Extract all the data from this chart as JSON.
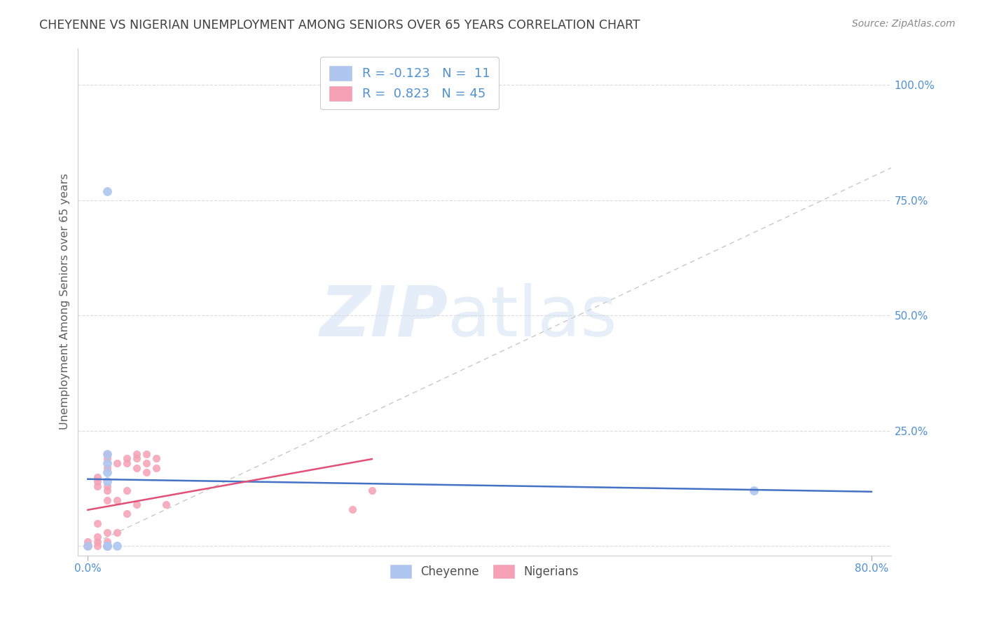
{
  "title": "CHEYENNE VS NIGERIAN UNEMPLOYMENT AMONG SENIORS OVER 65 YEARS CORRELATION CHART",
  "source": "Source: ZipAtlas.com",
  "ylabel": "Unemployment Among Seniors over 65 years",
  "xlabel": "",
  "xlim": [
    -0.01,
    0.82
  ],
  "ylim": [
    -0.02,
    1.08
  ],
  "xtick_positions": [
    0.0,
    0.8
  ],
  "xticklabels": [
    "0.0%",
    "80.0%"
  ],
  "ytick_positions": [
    0.0,
    0.25,
    0.5,
    0.75,
    1.0
  ],
  "yticklabels": [
    "",
    "25.0%",
    "50.0%",
    "75.0%",
    "100.0%"
  ],
  "cheyenne_color": "#aec6f0",
  "nigerian_color": "#f5a0b5",
  "cheyenne_line_color": "#4472c4",
  "nigerian_line_color": "#e05078",
  "diagonal_color": "#c8c8c8",
  "R_cheyenne": -0.123,
  "N_cheyenne": 11,
  "R_nigerian": 0.823,
  "N_nigerian": 45,
  "cheyenne_x": [
    0.0,
    0.02,
    0.02,
    0.02,
    0.02,
    0.02,
    0.02,
    0.02,
    0.02,
    0.03,
    0.68
  ],
  "cheyenne_y": [
    0.0,
    0.14,
    0.16,
    0.18,
    0.2,
    0.77,
    0.0,
    0.0,
    0.0,
    0.0,
    0.12
  ],
  "nigerian_x": [
    0.0,
    0.0,
    0.0,
    0.0,
    0.0,
    0.0,
    0.0,
    0.0,
    0.0,
    0.0,
    0.01,
    0.01,
    0.01,
    0.01,
    0.01,
    0.01,
    0.01,
    0.02,
    0.02,
    0.02,
    0.02,
    0.02,
    0.02,
    0.02,
    0.02,
    0.02,
    0.03,
    0.03,
    0.03,
    0.04,
    0.04,
    0.04,
    0.04,
    0.05,
    0.05,
    0.05,
    0.05,
    0.06,
    0.06,
    0.06,
    0.07,
    0.07,
    0.08,
    0.27,
    0.29
  ],
  "nigerian_y": [
    0.0,
    0.0,
    0.0,
    0.0,
    0.0,
    0.0,
    0.0,
    0.0,
    0.0,
    0.01,
    0.0,
    0.01,
    0.02,
    0.05,
    0.13,
    0.14,
    0.15,
    0.0,
    0.01,
    0.03,
    0.1,
    0.12,
    0.13,
    0.17,
    0.19,
    0.2,
    0.03,
    0.1,
    0.18,
    0.07,
    0.12,
    0.18,
    0.19,
    0.09,
    0.17,
    0.19,
    0.2,
    0.16,
    0.18,
    0.2,
    0.17,
    0.19,
    0.09,
    0.08,
    0.12
  ],
  "watermark_zip": "ZIP",
  "watermark_atlas": "atlas",
  "background_color": "#ffffff",
  "grid_color": "#d8d8d8",
  "title_color": "#404040",
  "axis_label_color": "#606060",
  "tick_color": "#5090d0",
  "legend_label_color": "#5090d0",
  "bottom_legend_color": "#505050"
}
